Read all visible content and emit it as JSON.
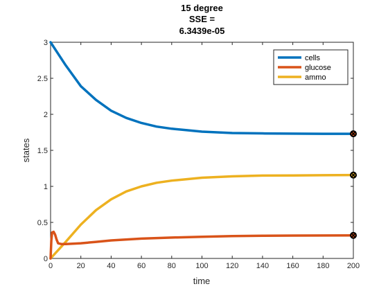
{
  "chart_data": {
    "type": "line",
    "title": [
      "15 degree",
      "SSE =",
      "6.3439e-05"
    ],
    "xlabel": "time",
    "ylabel": "states",
    "xlim": [
      0,
      200
    ],
    "ylim": [
      0,
      3
    ],
    "xticks": [
      0,
      20,
      40,
      60,
      80,
      100,
      120,
      140,
      160,
      180,
      200
    ],
    "yticks": [
      0,
      0.5,
      1,
      1.5,
      2,
      2.5,
      3
    ],
    "ytick_labels": [
      "0",
      "0.5",
      "1",
      "1.5",
      "2",
      "2.5",
      "3"
    ],
    "legend_position": "top-right",
    "grid": false,
    "series": [
      {
        "name": "cells",
        "color": "#0072BD",
        "x": [
          0,
          10,
          20,
          30,
          40,
          50,
          60,
          70,
          80,
          90,
          100,
          110,
          120,
          140,
          160,
          180,
          200
        ],
        "y": [
          3.0,
          2.68,
          2.39,
          2.2,
          2.05,
          1.95,
          1.88,
          1.83,
          1.8,
          1.78,
          1.76,
          1.75,
          1.74,
          1.735,
          1.732,
          1.73,
          1.73
        ]
      },
      {
        "name": "glucose",
        "color": "#D95319",
        "x": [
          0,
          0.5,
          1,
          2,
          3,
          4,
          5,
          7,
          10,
          20,
          30,
          40,
          60,
          80,
          100,
          120,
          140,
          160,
          180,
          200
        ],
        "y": [
          0.0,
          0.25,
          0.36,
          0.37,
          0.33,
          0.26,
          0.21,
          0.2,
          0.2,
          0.21,
          0.23,
          0.25,
          0.275,
          0.29,
          0.3,
          0.31,
          0.315,
          0.317,
          0.318,
          0.32
        ]
      },
      {
        "name": "ammo",
        "color": "#EDB120",
        "x": [
          0,
          10,
          20,
          30,
          40,
          50,
          60,
          70,
          80,
          90,
          100,
          120,
          140,
          160,
          180,
          200
        ],
        "y": [
          0.0,
          0.23,
          0.47,
          0.67,
          0.82,
          0.93,
          1.0,
          1.05,
          1.08,
          1.1,
          1.12,
          1.14,
          1.15,
          1.152,
          1.155,
          1.157
        ]
      }
    ],
    "markers": [
      {
        "x": 200,
        "y": 1.73,
        "color": "#D95319"
      },
      {
        "x": 200,
        "y": 1.157,
        "color": "#EDB120"
      },
      {
        "x": 200,
        "y": 0.32,
        "color": "#D95319"
      }
    ]
  }
}
